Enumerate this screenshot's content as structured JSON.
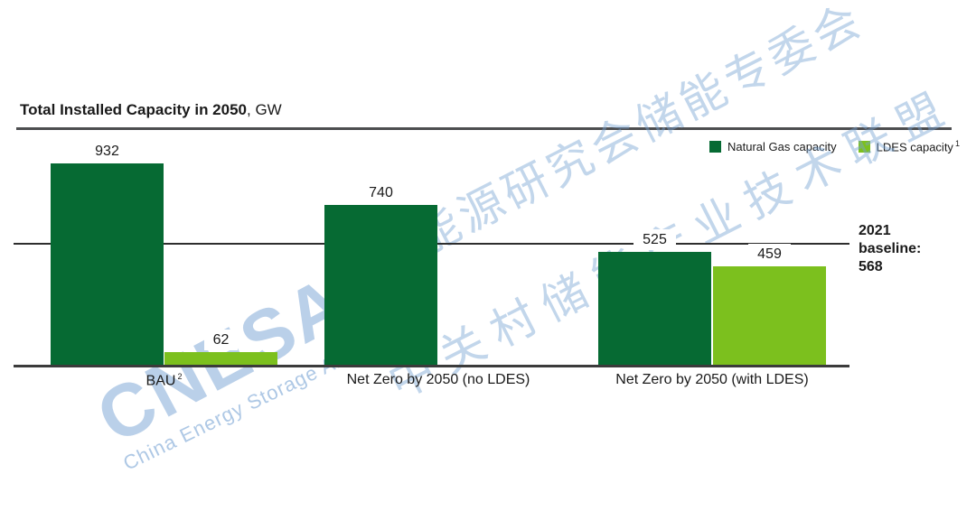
{
  "title": {
    "main": "Total Installed Capacity in 2050",
    "unit_suffix": ", GW"
  },
  "legend": {
    "items": [
      {
        "label": "Natural Gas capacity",
        "sup": "",
        "color": "#066a33"
      },
      {
        "label": "LDES capacity",
        "sup": "1",
        "color": "#7cc01e"
      }
    ]
  },
  "annotation": {
    "baseline_text": "2021\nbaseline:\n568"
  },
  "watermark": {
    "logo_text": "CNESA",
    "logo_subtext": "China Energy Storage Alliance",
    "cn_line1": "中国能源研究会储能专委会",
    "cn_line2": "中关村储能产业技术联盟",
    "blue": "#b3cde8",
    "green": "#8dc63f"
  },
  "chart_data": {
    "type": "bar",
    "title": "Total Installed Capacity in 2050, GW",
    "unit": "GW",
    "categories": [
      "BAU²",
      "Net Zero by 2050 (no LDES)",
      "Net Zero by 2050 (with LDES)"
    ],
    "categories_display": [
      {
        "text": "BAU",
        "sup": "2"
      },
      {
        "text": "Net Zero by 2050 (no LDES)",
        "sup": ""
      },
      {
        "text": "Net Zero by 2050 (with LDES)",
        "sup": ""
      }
    ],
    "series": [
      {
        "name": "Natural Gas capacity",
        "color": "#066a33",
        "values": [
          932,
          740,
          525
        ]
      },
      {
        "name": "LDES capacity",
        "color": "#7cc01e",
        "values": [
          62,
          null,
          459
        ]
      }
    ],
    "reference_line": {
      "label": "2021 baseline",
      "value": 568
    },
    "ylim": [
      0,
      1000
    ],
    "grid": false,
    "legend_position": "top-right",
    "value_labels": true
  }
}
